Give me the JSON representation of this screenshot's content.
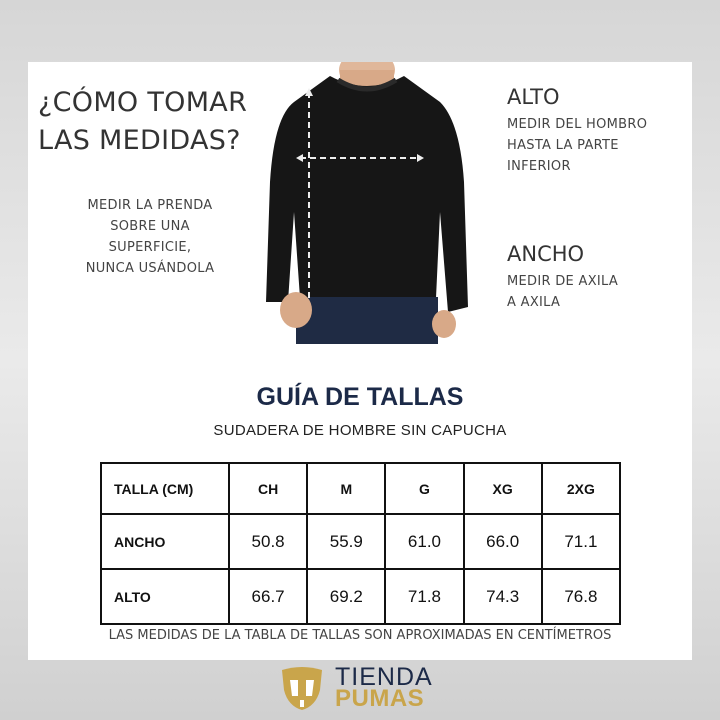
{
  "how_to": {
    "title_line1": "¿CÓMO TOMAR",
    "title_line2": "LAS MEDIDAS?",
    "instructions": [
      "MEDIR LA PRENDA",
      "SOBRE UNA",
      "SUPERFICIE,",
      "NUNCA USÁNDOLA"
    ]
  },
  "alto": {
    "heading": "ALTO",
    "lines": [
      "MEDIR DEL HOMBRO",
      "HASTA LA PARTE",
      "INFERIOR"
    ]
  },
  "ancho": {
    "heading": "ANCHO",
    "lines": [
      "MEDIR DE AXILA",
      "A AXILA"
    ]
  },
  "guide": {
    "title": "GUÍA DE TALLAS",
    "subtitle": "SUDADERA DE HOMBRE SIN CAPUCHA"
  },
  "table": {
    "headers": [
      "TALLA (CM)",
      "CH",
      "M",
      "G",
      "XG",
      "2XG"
    ],
    "rows": [
      {
        "label": "ANCHO",
        "values": [
          "50.8",
          "55.9",
          "61.0",
          "66.0",
          "71.1"
        ]
      },
      {
        "label": "ALTO",
        "values": [
          "66.7",
          "69.2",
          "71.8",
          "74.3",
          "76.8"
        ]
      }
    ]
  },
  "note": "LAS MEDIDAS DE LA TABLA DE TALLAS SON APROXIMADAS EN CENTÍMETROS",
  "logo": {
    "line1": "TIENDA",
    "line2": "PUMAS"
  },
  "colors": {
    "navy": "#1c2a48",
    "gold": "#c9a54b"
  }
}
